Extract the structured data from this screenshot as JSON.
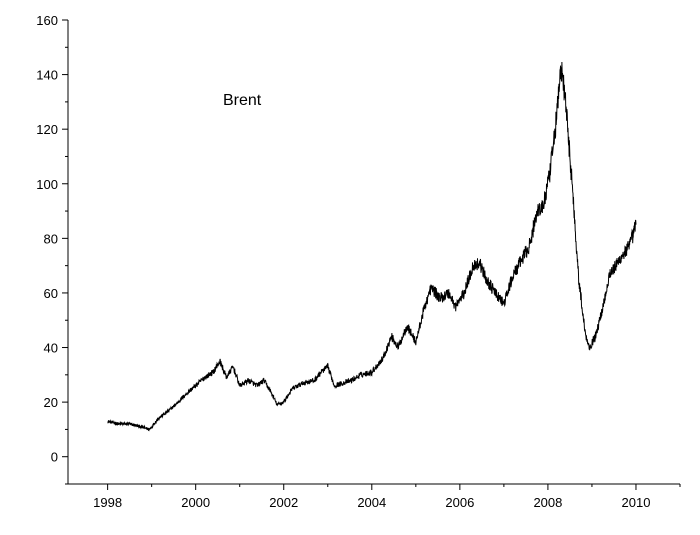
{
  "chart_data": {
    "type": "line",
    "title": "",
    "xlabel": "",
    "ylabel": "",
    "xlim": [
      1997.1,
      2011.0
    ],
    "ylim": [
      -10,
      160
    ],
    "x_ticks": [
      1998,
      2000,
      2002,
      2004,
      2006,
      2008,
      2010
    ],
    "x_tick_labels": [
      "1998",
      "2000",
      "2002",
      "2004",
      "2006",
      "2008",
      "2010"
    ],
    "y_ticks": [
      0,
      20,
      40,
      60,
      80,
      100,
      120,
      140,
      160
    ],
    "y_tick_labels": [
      "0",
      "20",
      "40",
      "60",
      "80",
      "100",
      "120",
      "140",
      "160"
    ],
    "grid": false,
    "annotation": "Brent",
    "series": [
      {
        "x": [
          1998.0,
          1998.25,
          1998.5,
          1998.75,
          1998.95,
          1999.15,
          1999.4,
          1999.6,
          1999.85,
          2000.0,
          2000.2,
          2000.4,
          2000.55,
          2000.7,
          2000.85,
          2001.0,
          2001.2,
          2001.4,
          2001.55,
          2001.7,
          2001.85,
          2002.0,
          2002.2,
          2002.45,
          2002.7,
          2002.85,
          2003.0,
          2003.15,
          2003.35,
          2003.55,
          2003.75,
          2004.0,
          2004.25,
          2004.45,
          2004.6,
          2004.8,
          2005.0,
          2005.2,
          2005.35,
          2005.55,
          2005.75,
          2005.9,
          2006.1,
          2006.3,
          2006.45,
          2006.6,
          2006.8,
          2007.0,
          2007.2,
          2007.4,
          2007.6,
          2007.75,
          2007.9,
          2008.05,
          2008.2,
          2008.3,
          2008.4,
          2008.55,
          2008.7,
          2008.85,
          2008.95,
          2009.1,
          2009.25,
          2009.4,
          2009.55,
          2009.7,
          2009.85,
          2010.0
        ],
        "y": [
          13,
          12,
          12,
          11,
          10,
          14,
          17,
          20,
          24,
          26,
          29,
          31,
          35,
          29,
          33,
          26,
          28,
          26,
          28,
          24,
          19,
          20,
          25,
          27,
          28,
          31,
          33,
          26,
          27,
          28,
          30,
          31,
          36,
          44,
          40,
          48,
          42,
          55,
          62,
          58,
          60,
          55,
          60,
          70,
          71,
          65,
          60,
          56,
          66,
          72,
          78,
          90,
          92,
          104,
          125,
          143,
          130,
          100,
          65,
          45,
          40,
          45,
          55,
          67,
          70,
          74,
          77,
          85
        ]
      }
    ]
  }
}
